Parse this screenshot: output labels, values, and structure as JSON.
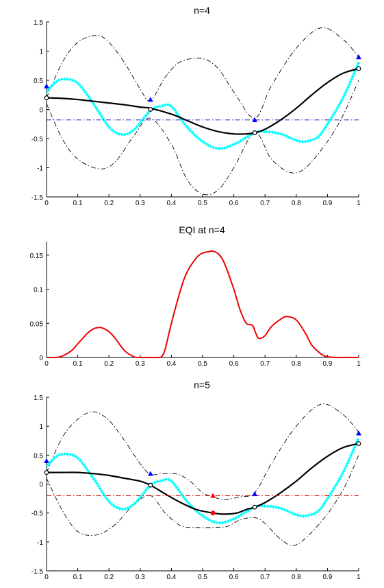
{
  "chart_data": [
    {
      "type": "line",
      "title": "n=4",
      "xlim": [
        0,
        1
      ],
      "ylim": [
        -1.5,
        1.5
      ],
      "xticks": [
        "0",
        "0.1",
        "0.2",
        "0.3",
        "0.4",
        "0.5",
        "0.6",
        "0.7",
        "0.8",
        "0.9",
        "1"
      ],
      "yticks": [
        "-1.5",
        "-1",
        "-0.5",
        "0",
        "0.5",
        "1",
        "1.5"
      ],
      "grid": false,
      "series": [
        {
          "role": "upper-bound",
          "color": "#000000",
          "style": "dash-dot",
          "x": [
            0,
            0.05,
            0.1,
            0.16,
            0.2,
            0.25,
            0.3,
            0.333,
            0.38,
            0.43,
            0.5,
            0.55,
            0.6,
            0.667,
            0.72,
            0.8,
            0.88,
            0.95,
            1
          ],
          "y": [
            0.2,
            0.8,
            1.15,
            1.27,
            1.15,
            0.8,
            0.35,
            0.15,
            0.55,
            0.82,
            0.87,
            0.7,
            0.3,
            -0.15,
            0.4,
            1.05,
            1.4,
            1.2,
            0.9
          ]
        },
        {
          "role": "lower-bound",
          "color": "#000000",
          "style": "dash-dot",
          "x": [
            0,
            0.05,
            0.1,
            0.17,
            0.22,
            0.28,
            0.333,
            0.4,
            0.45,
            0.5,
            0.55,
            0.6,
            0.667,
            0.72,
            0.78,
            0.83,
            0.9,
            0.95,
            1
          ],
          "y": [
            0.1,
            -0.5,
            -0.85,
            -1.02,
            -0.9,
            -0.45,
            -0.15,
            -0.6,
            -1.2,
            -1.45,
            -1.38,
            -1.0,
            -0.4,
            -0.85,
            -1.08,
            -1.0,
            -0.55,
            -0.1,
            0.5
          ]
        },
        {
          "role": "true-function",
          "color": "#00ffff",
          "style": "dots",
          "x": [
            0,
            0.03,
            0.06,
            0.1,
            0.15,
            0.2,
            0.24,
            0.28,
            0.333,
            0.37,
            0.4,
            0.45,
            0.5,
            0.55,
            0.6,
            0.667,
            0.7,
            0.75,
            0.8,
            0.83,
            0.87,
            0.9,
            0.95,
            1
          ],
          "y": [
            0.3,
            0.47,
            0.52,
            0.45,
            0.1,
            -0.3,
            -0.43,
            -0.35,
            -0.02,
            0.06,
            0.05,
            -0.3,
            -0.55,
            -0.67,
            -0.6,
            -0.4,
            -0.38,
            -0.42,
            -0.53,
            -0.55,
            -0.47,
            -0.25,
            0.2,
            0.8
          ]
        },
        {
          "role": "mean",
          "color": "#000000",
          "style": "solid",
          "x": [
            0,
            0.05,
            0.1,
            0.15,
            0.2,
            0.25,
            0.3,
            0.333,
            0.4,
            0.45,
            0.5,
            0.55,
            0.6,
            0.64,
            0.667,
            0.7,
            0.75,
            0.8,
            0.85,
            0.9,
            0.95,
            1
          ],
          "y": [
            0.2,
            0.19,
            0.17,
            0.14,
            0.11,
            0.08,
            0.04,
            0.02,
            -0.08,
            -0.19,
            -0.3,
            -0.38,
            -0.42,
            -0.42,
            -0.4,
            -0.34,
            -0.18,
            0.02,
            0.25,
            0.46,
            0.62,
            0.7
          ]
        },
        {
          "role": "threshold",
          "color": "#0000aa",
          "style": "dash-dot",
          "x": [
            0,
            1
          ],
          "y": [
            -0.18,
            -0.18
          ]
        }
      ],
      "observations": {
        "x": [
          0,
          0.333,
          0.667,
          1
        ],
        "y": [
          0.2,
          0.0,
          -0.4,
          0.7
        ],
        "color": "#000000"
      },
      "upper_markers": {
        "x": [
          0,
          0.333,
          0.667,
          1
        ],
        "y": [
          0.4,
          0.17,
          -0.18,
          0.9
        ],
        "color": "#0000ff"
      }
    },
    {
      "type": "line",
      "title": "EQI at n=4",
      "xlim": [
        0,
        1
      ],
      "ylim": [
        0,
        0.17
      ],
      "xticks": [
        "0",
        "0.1",
        "0.2",
        "0.3",
        "0.4",
        "0.5",
        "0.6",
        "0.7",
        "0.8",
        "0.9",
        "1"
      ],
      "yticks": [
        "0",
        "0.05",
        "0.1",
        "0.15"
      ],
      "grid": false,
      "series": [
        {
          "role": "eqi",
          "color": "#ee0000",
          "style": "solid",
          "x": [
            0,
            0.03,
            0.05,
            0.08,
            0.1,
            0.13,
            0.15,
            0.17,
            0.18,
            0.2,
            0.22,
            0.25,
            0.28,
            0.3,
            0.33,
            0.36,
            0.37,
            0.38,
            0.4,
            0.43,
            0.45,
            0.48,
            0.5,
            0.52,
            0.53,
            0.55,
            0.57,
            0.6,
            0.62,
            0.64,
            0.66,
            0.67,
            0.68,
            0.7,
            0.72,
            0.75,
            0.77,
            0.8,
            0.83,
            0.85,
            0.88,
            0.9,
            0.93,
            0.95,
            1
          ],
          "y": [
            0,
            0,
            0.002,
            0.01,
            0.02,
            0.035,
            0.042,
            0.044,
            0.043,
            0.038,
            0.028,
            0.01,
            0.001,
            0,
            0,
            0,
            0.002,
            0.012,
            0.05,
            0.1,
            0.125,
            0.146,
            0.153,
            0.155,
            0.156,
            0.152,
            0.138,
            0.1,
            0.07,
            0.05,
            0.047,
            0.036,
            0.028,
            0.032,
            0.045,
            0.056,
            0.06,
            0.055,
            0.035,
            0.018,
            0.005,
            0.001,
            0,
            0,
            0
          ]
        }
      ]
    },
    {
      "type": "line",
      "title": "n=5",
      "xlim": [
        0,
        1
      ],
      "ylim": [
        -1.5,
        1.5
      ],
      "xticks": [
        "0",
        "0.1",
        "0.2",
        "0.3",
        "0.4",
        "0.5",
        "0.6",
        "0.7",
        "0.8",
        "0.9",
        "1"
      ],
      "yticks": [
        "-1.5",
        "-1",
        "-0.5",
        "0",
        "0.5",
        "1",
        "1.5"
      ],
      "grid": false,
      "series": [
        {
          "role": "upper-bound",
          "color": "#000000",
          "style": "dash-dot",
          "x": [
            0,
            0.05,
            0.1,
            0.15,
            0.2,
            0.25,
            0.3,
            0.333,
            0.37,
            0.42,
            0.46,
            0.5,
            0.533,
            0.57,
            0.62,
            0.667,
            0.72,
            0.8,
            0.88,
            0.95,
            1
          ],
          "y": [
            0.2,
            0.8,
            1.12,
            1.25,
            1.1,
            0.75,
            0.35,
            0.17,
            0.18,
            0.17,
            0.05,
            -0.15,
            -0.22,
            -0.27,
            -0.22,
            -0.15,
            0.35,
            1.0,
            1.38,
            1.2,
            0.9
          ]
        },
        {
          "role": "lower-bound",
          "color": "#000000",
          "style": "dash-dot",
          "x": [
            0,
            0.05,
            0.1,
            0.16,
            0.22,
            0.28,
            0.333,
            0.38,
            0.43,
            0.48,
            0.533,
            0.58,
            0.62,
            0.667,
            0.7,
            0.75,
            0.8,
            0.88,
            0.95,
            1
          ],
          "y": [
            0.1,
            -0.45,
            -0.82,
            -0.88,
            -0.7,
            -0.35,
            -0.2,
            -0.5,
            -0.72,
            -0.75,
            -0.75,
            -0.73,
            -0.62,
            -0.58,
            -0.68,
            -0.95,
            -1.05,
            -0.65,
            -0.1,
            0.5
          ]
        },
        {
          "role": "true-function",
          "color": "#00ffff",
          "style": "dots",
          "x": [
            0,
            0.03,
            0.06,
            0.1,
            0.15,
            0.2,
            0.24,
            0.28,
            0.333,
            0.37,
            0.4,
            0.45,
            0.5,
            0.55,
            0.6,
            0.667,
            0.7,
            0.75,
            0.8,
            0.83,
            0.87,
            0.9,
            0.95,
            1
          ],
          "y": [
            0.3,
            0.47,
            0.52,
            0.45,
            0.1,
            -0.3,
            -0.43,
            -0.35,
            -0.02,
            0.06,
            0.05,
            -0.3,
            -0.55,
            -0.67,
            -0.6,
            -0.4,
            -0.38,
            -0.42,
            -0.53,
            -0.55,
            -0.47,
            -0.25,
            0.2,
            0.8
          ]
        },
        {
          "role": "mean",
          "color": "#000000",
          "style": "solid",
          "x": [
            0,
            0.05,
            0.1,
            0.15,
            0.2,
            0.25,
            0.3,
            0.333,
            0.38,
            0.43,
            0.48,
            0.533,
            0.57,
            0.61,
            0.64,
            0.667,
            0.7,
            0.75,
            0.8,
            0.85,
            0.9,
            0.95,
            1
          ],
          "y": [
            0.2,
            0.2,
            0.2,
            0.18,
            0.15,
            0.1,
            0.05,
            -0.02,
            -0.17,
            -0.32,
            -0.44,
            -0.5,
            -0.52,
            -0.5,
            -0.44,
            -0.4,
            -0.32,
            -0.15,
            0.05,
            0.28,
            0.48,
            0.63,
            0.7
          ]
        },
        {
          "role": "threshold",
          "color": "#cc0000",
          "style": "dash-dot",
          "x": [
            0,
            1
          ],
          "y": [
            -0.2,
            -0.2
          ]
        }
      ],
      "observations": {
        "x": [
          0,
          0.333,
          0.533,
          0.667,
          1
        ],
        "y": [
          0.2,
          -0.02,
          -0.5,
          -0.4,
          0.7
        ],
        "color": "#000000",
        "new_point_color": "#ff0000"
      },
      "upper_markers": {
        "x": [
          0,
          0.333,
          0.533,
          0.667,
          1
        ],
        "y": [
          0.4,
          0.18,
          -0.2,
          -0.17,
          0.88
        ],
        "colors": [
          "#0000ff",
          "#0000ff",
          "#ff0000",
          "#0000ff",
          "#0000ff"
        ]
      }
    }
  ]
}
